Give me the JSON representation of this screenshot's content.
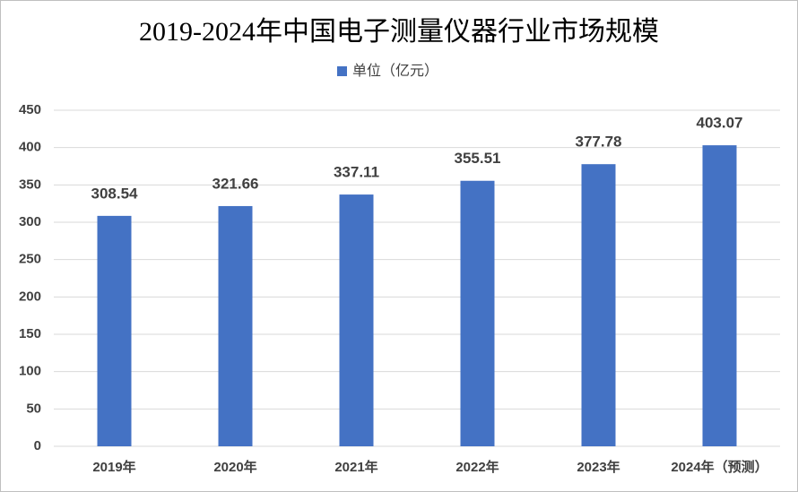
{
  "chart_data": {
    "type": "bar",
    "title": "2019-2024年中国电子测量仪器行业市场规模",
    "categories": [
      "2019年",
      "2020年",
      "2021年",
      "2022年",
      "2023年",
      "2024年（预测）"
    ],
    "series": [
      {
        "name": "单位（亿元）",
        "color": "#4472c4",
        "values": [
          308.54,
          321.66,
          337.11,
          355.51,
          377.78,
          403.07
        ]
      }
    ],
    "ylim": [
      0,
      450
    ],
    "yticks": [
      0,
      50,
      100,
      150,
      200,
      250,
      300,
      350,
      400,
      450
    ],
    "grid": true
  }
}
